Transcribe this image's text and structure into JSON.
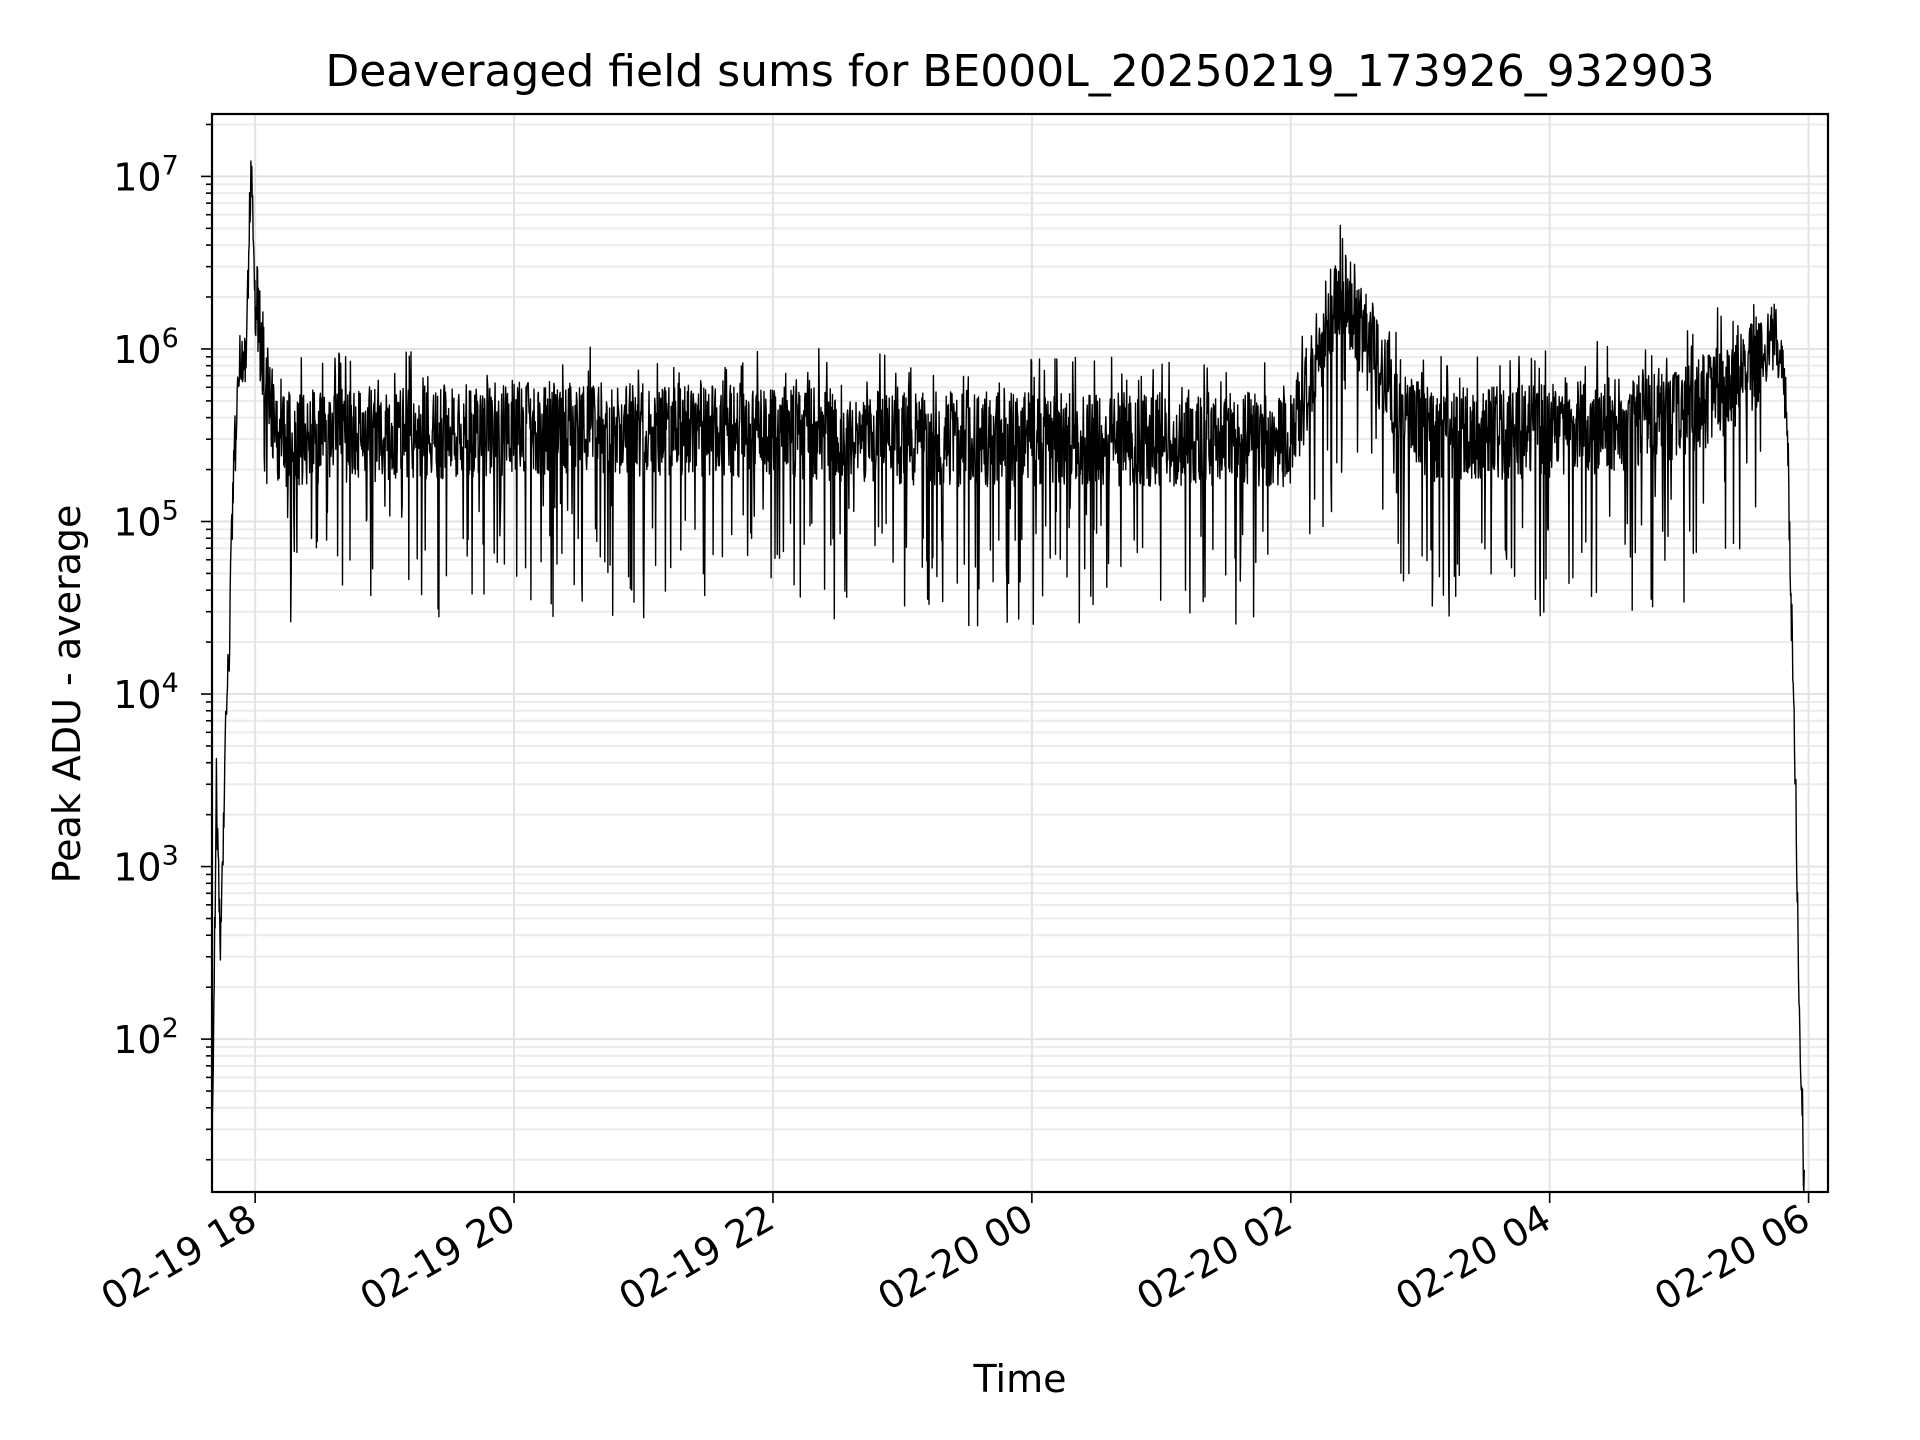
{
  "chart_data": {
    "type": "line",
    "title": "Deaveraged field sums for BE000L_20250219_173926_932903",
    "xlabel": "Time",
    "ylabel": "Peak ADU - average",
    "yscale": "log",
    "xlim": [
      "2025-02-19 17:40",
      "2025-02-20 06:09"
    ],
    "ylim": [
      13,
      23000000
    ],
    "x_ticks": [
      {
        "t": "2025-02-19 18:00",
        "label": "02-19 18"
      },
      {
        "t": "2025-02-19 20:00",
        "label": "02-19 20"
      },
      {
        "t": "2025-02-19 22:00",
        "label": "02-19 22"
      },
      {
        "t": "2025-02-20 00:00",
        "label": "02-20 00"
      },
      {
        "t": "2025-02-20 02:00",
        "label": "02-20 02"
      },
      {
        "t": "2025-02-20 04:00",
        "label": "02-20 04"
      },
      {
        "t": "2025-02-20 06:00",
        "label": "02-20 06"
      }
    ],
    "y_ticks": [
      {
        "value": 100,
        "base": "10",
        "exp": "2"
      },
      {
        "value": 1000,
        "base": "10",
        "exp": "3"
      },
      {
        "value": 10000,
        "base": "10",
        "exp": "4"
      },
      {
        "value": 100000,
        "base": "10",
        "exp": "5"
      },
      {
        "value": 1000000,
        "base": "10",
        "exp": "6"
      },
      {
        "value": 10000000,
        "base": "10",
        "exp": "7"
      }
    ],
    "grid": "both",
    "line_color": "#000000",
    "series": [
      {
        "anchors": [
          [
            "2025-02-19 17:40",
            15
          ],
          [
            "2025-02-19 17:42",
            3000
          ],
          [
            "2025-02-19 17:44",
            300
          ],
          [
            "2025-02-19 17:46",
            4000
          ],
          [
            "2025-02-19 17:48",
            20000
          ],
          [
            "2025-02-19 17:50",
            200000
          ],
          [
            "2025-02-19 17:53",
            800000
          ],
          [
            "2025-02-19 17:56",
            1000000
          ],
          [
            "2025-02-19 17:58",
            12000000
          ],
          [
            "2025-02-19 18:00",
            2000000
          ],
          [
            "2025-02-19 18:05",
            700000
          ],
          [
            "2025-02-19 18:10",
            300000
          ],
          [
            "2025-02-19 18:30",
            300000
          ],
          [
            "2025-02-19 19:00",
            320000
          ],
          [
            "2025-02-19 20:00",
            350000
          ],
          [
            "2025-02-19 21:00",
            340000
          ],
          [
            "2025-02-19 22:00",
            330000
          ],
          [
            "2025-02-19 23:00",
            300000
          ],
          [
            "2025-02-20 00:00",
            300000
          ],
          [
            "2025-02-20 01:00",
            300000
          ],
          [
            "2025-02-20 02:00",
            300000
          ],
          [
            "2025-02-20 02:23",
            2000000
          ],
          [
            "2025-02-20 03:00",
            320000
          ],
          [
            "2025-02-20 04:00",
            330000
          ],
          [
            "2025-02-20 05:00",
            400000
          ],
          [
            "2025-02-20 05:30",
            700000
          ],
          [
            "2025-02-20 05:45",
            1200000
          ],
          [
            "2025-02-20 05:50",
            500000
          ],
          [
            "2025-02-20 05:52",
            30000
          ],
          [
            "2025-02-20 05:54",
            3000
          ],
          [
            "2025-02-20 05:56",
            100
          ],
          [
            "2025-02-20 05:58",
            15
          ]
        ]
      }
    ]
  }
}
